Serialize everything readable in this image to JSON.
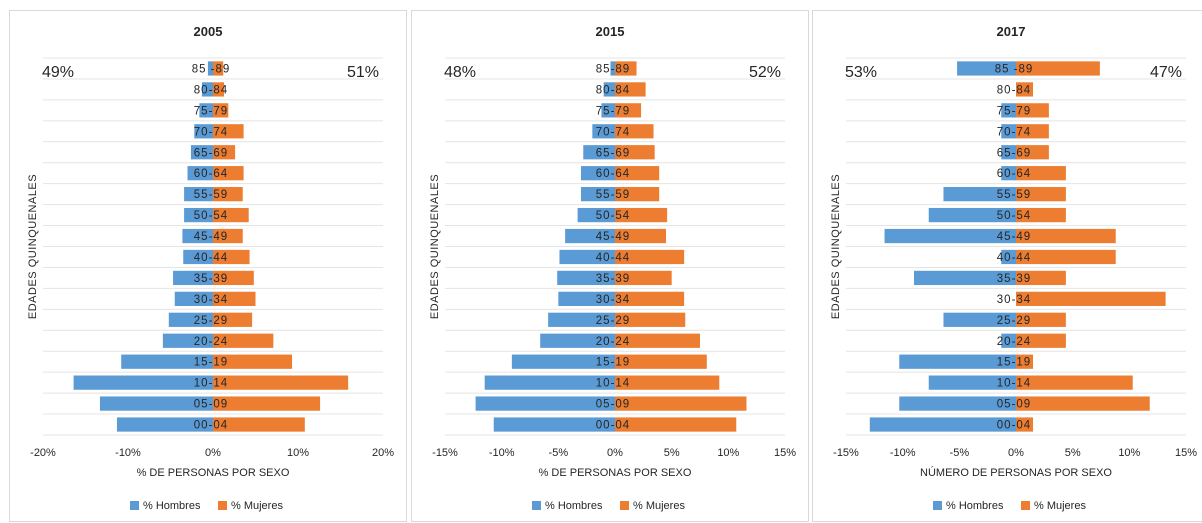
{
  "chart_data": [
    {
      "type": "bar",
      "orientation": "horizontal",
      "layout": "population-pyramid",
      "title": "2005",
      "xlabel": "% DE PERSONAS POR SEXO",
      "ylabel": "EDADES QUINQUENALES",
      "xlim": [
        -20,
        20
      ],
      "xticks": [
        "-20%",
        "-10%",
        "0%",
        "10%",
        "20%"
      ],
      "grid": true,
      "legend_position": "bottom",
      "corner_labels": {
        "left": "49%",
        "right": "51%"
      },
      "categories": [
        "85 -89",
        "80-84",
        "75-79",
        "70-74",
        "65-69",
        "60-64",
        "55-59",
        "50-54",
        "45-49",
        "40-44",
        "35-39",
        "30-34",
        "25-29",
        "20-24",
        "15-19",
        "10-14",
        "05-09",
        "00-04"
      ],
      "series": [
        {
          "name": "% Hombres",
          "color": "#5b9bd5",
          "values": [
            -0.6,
            -1.3,
            -1.6,
            -2.2,
            -2.6,
            -3.0,
            -3.4,
            -3.4,
            -3.6,
            -3.5,
            -4.7,
            -4.5,
            -5.2,
            -5.9,
            -10.8,
            -16.4,
            -13.3,
            -11.3
          ]
        },
        {
          "name": "% Mujeres",
          "color": "#ed7d31",
          "values": [
            1.2,
            1.3,
            1.8,
            3.6,
            2.6,
            3.6,
            3.5,
            4.2,
            3.5,
            4.3,
            4.8,
            5.0,
            4.6,
            7.1,
            9.3,
            15.9,
            12.6,
            10.8
          ]
        }
      ]
    },
    {
      "type": "bar",
      "orientation": "horizontal",
      "layout": "population-pyramid",
      "title": "2015",
      "xlabel": "% DE PERSONAS POR SEXO",
      "ylabel": "EDADES QUINQUENALES",
      "xlim": [
        -15,
        15
      ],
      "xticks": [
        "-15%",
        "-10%",
        "-5%",
        "0%",
        "5%",
        "10%",
        "15%"
      ],
      "grid": true,
      "legend_position": "bottom",
      "corner_labels": {
        "left": "48%",
        "right": "52%"
      },
      "categories": [
        "85-89",
        "80-84",
        "75-79",
        "70-74",
        "65-69",
        "60-64",
        "55-59",
        "50-54",
        "45-49",
        "40-44",
        "35-39",
        "30-34",
        "25-29",
        "20-24",
        "15-19",
        "10-14",
        "05-09",
        "00-04"
      ],
      "series": [
        {
          "name": "% Hombres",
          "color": "#5b9bd5",
          "values": [
            -0.4,
            -1.0,
            -1.2,
            -2.0,
            -2.8,
            -3.0,
            -3.0,
            -3.3,
            -4.4,
            -4.9,
            -5.1,
            -5.0,
            -5.9,
            -6.6,
            -9.1,
            -11.5,
            -12.3,
            -10.7
          ]
        },
        {
          "name": "% Mujeres",
          "color": "#ed7d31",
          "values": [
            1.9,
            2.7,
            2.3,
            3.4,
            3.5,
            3.9,
            3.9,
            4.6,
            4.5,
            6.1,
            5.0,
            6.1,
            6.2,
            7.5,
            8.1,
            9.2,
            11.6,
            10.7
          ]
        }
      ]
    },
    {
      "type": "bar",
      "orientation": "horizontal",
      "layout": "population-pyramid",
      "title": "2017",
      "xlabel": "NÚMERO DE PERSONAS POR SEXO",
      "ylabel": "EDADES QUINQUENALES",
      "xlim": [
        -15,
        15
      ],
      "xticks": [
        "-15%",
        "-10%",
        "-5%",
        "0%",
        "5%",
        "10%",
        "15%"
      ],
      "grid": true,
      "legend_position": "bottom",
      "corner_labels": {
        "left": "53%",
        "right": "47%"
      },
      "categories": [
        "85 -89",
        "80-84",
        "75-79",
        "70-74",
        "65-69",
        "60-64",
        "55-59",
        "50-54",
        "45-49",
        "40-44",
        "35-39",
        "30-34",
        "25-29",
        "20-24",
        "15-19",
        "10-14",
        "05-09",
        "00-04"
      ],
      "series": [
        {
          "name": "% Hombres",
          "color": "#5b9bd5",
          "values": [
            -5.2,
            0,
            -1.3,
            -1.3,
            -1.3,
            -1.3,
            -6.4,
            -7.7,
            -11.6,
            -1.3,
            -9.0,
            0,
            -6.4,
            -1.3,
            -10.3,
            -7.7,
            -10.3,
            -12.9
          ]
        },
        {
          "name": "% Mujeres",
          "color": "#ed7d31",
          "values": [
            7.4,
            1.5,
            2.9,
            2.9,
            2.9,
            4.4,
            4.4,
            4.4,
            8.8,
            8.8,
            4.4,
            13.2,
            4.4,
            4.4,
            1.5,
            10.3,
            11.8,
            1.5
          ]
        }
      ]
    }
  ]
}
